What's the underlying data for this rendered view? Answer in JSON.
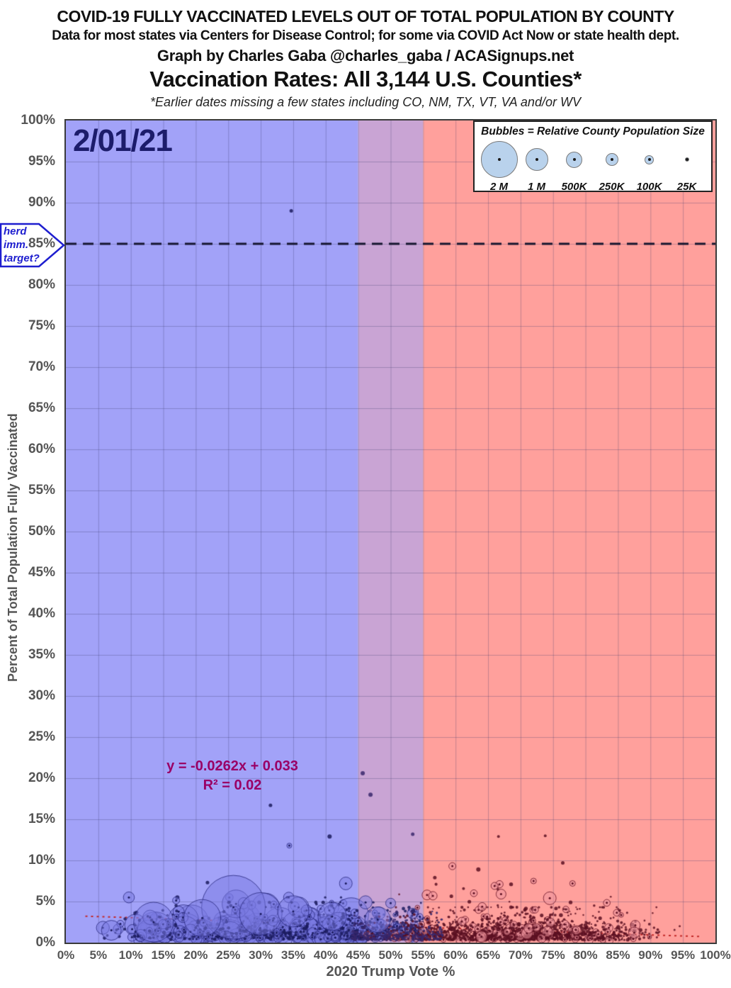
{
  "header": {
    "line1": "COVID-19 FULLY VACCINATED LEVELS OUT OF TOTAL POPULATION BY COUNTY",
    "line2": "Data for most states via Centers for Disease Control; for some via COVID Act Now or state health dept.",
    "line3": "Graph by Charles Gaba @charles_gaba / ACASignups.net",
    "line4": "Vaccination Rates: All 3,144 U.S. Counties*",
    "line5": "*Earlier dates missing a few states including CO, NM, TX, VT, VA and/or WV"
  },
  "chart_data": {
    "type": "scatter",
    "subtype": "bubble",
    "date_label": "2/01/21",
    "xlabel": "2020 Trump Vote %",
    "ylabel": "Percent of Total Population Fully Vaccinated",
    "xlim": [
      0,
      100
    ],
    "ylim": [
      0,
      100
    ],
    "grid_step": 5,
    "x_ticks": [
      "0%",
      "5%",
      "10%",
      "15%",
      "20%",
      "25%",
      "30%",
      "35%",
      "40%",
      "45%",
      "50%",
      "55%",
      "60%",
      "65%",
      "70%",
      "75%",
      "80%",
      "85%",
      "90%",
      "95%",
      "100%"
    ],
    "y_ticks": [
      "100%",
      "95%",
      "90%",
      "85%",
      "80%",
      "75%",
      "70%",
      "65%",
      "60%",
      "55%",
      "50%",
      "45%",
      "40%",
      "35%",
      "30%",
      "25%",
      "20%",
      "15%",
      "10%",
      "5%",
      "0%"
    ],
    "regions": [
      {
        "name": "blue-lean-counties",
        "x_min": 0,
        "x_max": 45,
        "color": "#a2a2f8"
      },
      {
        "name": "swing-counties",
        "x_min": 45,
        "x_max": 55,
        "color": "#c9a4d4"
      },
      {
        "name": "red-lean-counties",
        "x_min": 55,
        "x_max": 100,
        "color": "#ffa09c"
      }
    ],
    "herd_line": {
      "y": 85,
      "label_lines": [
        "herd",
        "imm.",
        "target?"
      ],
      "line_color": "#15152f",
      "callout_color": "#1e1ecf"
    },
    "trendline": {
      "equation": "y = -0.0262x + 0.033",
      "r2_label": "R² = 0.02",
      "slope": -0.0262,
      "intercept": 0.033,
      "x_start": 3,
      "x_end": 97.5,
      "color": "#c22828"
    },
    "legend": {
      "title": "Bubbles = Relative  County Population Size",
      "items": [
        {
          "label": "2 M",
          "r": 26
        },
        {
          "label": "1 M",
          "r": 16
        },
        {
          "label": "500K",
          "r": 11.5
        },
        {
          "label": "250K",
          "r": 9
        },
        {
          "label": "100K",
          "r": 6.5
        },
        {
          "label": "25K",
          "r": 3
        }
      ],
      "bubble_fill": "#b9d2ec"
    },
    "grid_color": "rgba(60,60,110,0.30)",
    "styles": {
      "blue": {
        "fill": "rgba(122,122,226,0.50)",
        "stroke": "rgba(35,35,120,0.75)",
        "dot": "#1b1b5e"
      },
      "red": {
        "fill": "rgba(238,150,158,0.55)",
        "stroke": "rgba(105,20,38,0.80)",
        "dot": "#5c1022"
      },
      "dark": {
        "fill": "rgba(58,40,108,0.90)",
        "stroke": "rgba(58,40,108,0.90)",
        "dot": "#3a286c"
      }
    },
    "notable_points": [
      {
        "x": 34.7,
        "y": 89.0,
        "r": 2.5,
        "style": "blue"
      },
      {
        "x": 45.7,
        "y": 20.6,
        "r": 3.0,
        "style": "dark"
      },
      {
        "x": 46.9,
        "y": 18.0,
        "r": 3.0,
        "style": "dark"
      },
      {
        "x": 31.5,
        "y": 16.7,
        "r": 2.5,
        "style": "blue"
      },
      {
        "x": 40.6,
        "y": 12.9,
        "r": 3.0,
        "style": "blue"
      },
      {
        "x": 34.4,
        "y": 11.8,
        "r": 3.5,
        "style": "blue"
      },
      {
        "x": 53.4,
        "y": 13.2,
        "r": 2.5,
        "style": "dark"
      },
      {
        "x": 66.6,
        "y": 12.9,
        "r": 2.0,
        "style": "red"
      },
      {
        "x": 73.8,
        "y": 13.0,
        "r": 2.0,
        "style": "red"
      },
      {
        "x": 59.5,
        "y": 9.3,
        "r": 5.0,
        "style": "red"
      },
      {
        "x": 63.5,
        "y": 8.9,
        "r": 3.0,
        "style": "red"
      },
      {
        "x": 56.8,
        "y": 7.9,
        "r": 2.5,
        "style": "red"
      },
      {
        "x": 76.5,
        "y": 9.7,
        "r": 2.5,
        "style": "red"
      },
      {
        "x": 21.8,
        "y": 7.3,
        "r": 2.5,
        "style": "blue"
      },
      {
        "x": 43.1,
        "y": 7.2,
        "r": 9.0,
        "style": "blue"
      },
      {
        "x": 94.5,
        "y": 2.0,
        "r": 1.5,
        "style": "red"
      },
      {
        "x": 93.7,
        "y": 1.55,
        "r": 1.5,
        "style": "red"
      }
    ],
    "big_bubbles": [
      {
        "x": 25.8,
        "y": 4.3,
        "r": 45,
        "style": "blue"
      },
      {
        "x": 30.0,
        "y": 3.5,
        "r": 30,
        "style": "blue"
      },
      {
        "x": 13.5,
        "y": 2.5,
        "r": 28,
        "style": "blue"
      },
      {
        "x": 21.0,
        "y": 3.0,
        "r": 26,
        "style": "blue"
      },
      {
        "x": 35.0,
        "y": 3.8,
        "r": 22,
        "style": "blue"
      },
      {
        "x": 41.0,
        "y": 3.2,
        "r": 20,
        "style": "blue"
      },
      {
        "x": 48.0,
        "y": 2.8,
        "r": 18,
        "style": "blue"
      },
      {
        "x": 7.0,
        "y": 1.5,
        "r": 14,
        "style": "blue"
      },
      {
        "x": 50.0,
        "y": 4.8,
        "r": 7,
        "style": "blue"
      },
      {
        "x": 55.6,
        "y": 5.8,
        "r": 7,
        "style": "red"
      },
      {
        "x": 56.5,
        "y": 5.7,
        "r": 6,
        "style": "red"
      },
      {
        "x": 74.5,
        "y": 5.4,
        "r": 9,
        "style": "red"
      },
      {
        "x": 67.0,
        "y": 5.9,
        "r": 7,
        "style": "red"
      },
      {
        "x": 66.0,
        "y": 6.9,
        "r": 5,
        "style": "red"
      },
      {
        "x": 72.0,
        "y": 7.5,
        "r": 4,
        "style": "red"
      },
      {
        "x": 78.0,
        "y": 7.2,
        "r": 4,
        "style": "red"
      }
    ],
    "cloud_groups": [
      {
        "style": "blue",
        "count": 300,
        "x_dist": "pow",
        "x_min": 4,
        "x_max": 45,
        "x_pow": 0.6,
        "y_base": 0.5,
        "y_mean": 1.2,
        "y_cap": 5.0,
        "big_frac": 0.55,
        "r_big_min": 5,
        "r_big_max": 26,
        "r_dot_min": 1.4,
        "r_dot_max": 3.0
      },
      {
        "style": "blue",
        "count": 520,
        "x_dist": "pow",
        "x_min": 10,
        "x_max": 55,
        "x_pow": 0.8,
        "y_base": 0.4,
        "y_mean": 1.1,
        "y_cap": 4.5,
        "big_frac": 0.25,
        "r_big_min": 3,
        "r_big_max": 10,
        "r_dot_min": 1.3,
        "r_dot_max": 2.6
      },
      {
        "style": "blue",
        "count": 250,
        "x_dist": "pow",
        "x_min": 40,
        "x_max": 55,
        "x_pow": 1.0,
        "y_base": 0.4,
        "y_mean": 1.0,
        "y_cap": 4.2,
        "big_frac": 0.3,
        "r_big_min": 2.5,
        "r_big_max": 8,
        "r_dot_min": 1.2,
        "r_dot_max": 2.4
      },
      {
        "style": "red",
        "count": 1500,
        "x_dist": "tri",
        "x_min": 45,
        "x_max": 92,
        "x_pow": 1.0,
        "y_base": 0.3,
        "y_mean": 0.95,
        "y_cap": 4.0,
        "big_frac": 0.1,
        "r_big_min": 2.5,
        "r_big_max": 6.5,
        "r_dot_min": 1.0,
        "r_dot_max": 2.2
      },
      {
        "style": "red",
        "count": 150,
        "x_dist": "tri",
        "x_min": 50,
        "x_max": 89,
        "x_pow": 1.0,
        "y_base": 0.6,
        "y_mean": 1.4,
        "y_cap": 6.5,
        "big_frac": 0.35,
        "r_big_min": 2.5,
        "r_big_max": 8,
        "r_dot_min": 1.2,
        "r_dot_max": 2.2
      },
      {
        "style": "dark",
        "count": 350,
        "x_dist": "pow",
        "x_min": 44,
        "x_max": 58,
        "x_pow": 1.0,
        "y_base": 0.3,
        "y_mean": 0.9,
        "y_cap": 3.5,
        "big_frac": 0.0,
        "r_big_min": 0,
        "r_big_max": 0,
        "r_dot_min": 1.0,
        "r_dot_max": 2.0
      }
    ],
    "cloud_seed": 20210201
  }
}
